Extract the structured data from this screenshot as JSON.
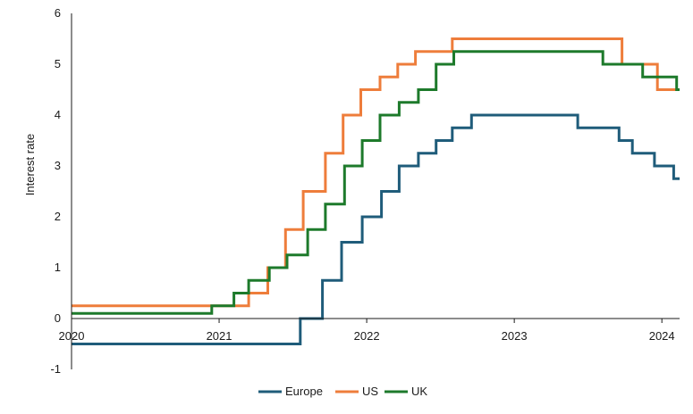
{
  "chart_data": {
    "type": "line",
    "title": "",
    "xlabel": "",
    "ylabel": "Interest rate",
    "xlim": [
      2020.0,
      2024.12
    ],
    "ylim": [
      -1,
      6
    ],
    "x_ticks": [
      {
        "value": 2020,
        "label": "2020"
      },
      {
        "value": 2021,
        "label": "2021"
      },
      {
        "value": 2022,
        "label": "2022"
      },
      {
        "value": 2023,
        "label": "2023"
      },
      {
        "value": 2024,
        "label": "2024"
      }
    ],
    "y_ticks": [
      {
        "value": 6,
        "label": "6"
      },
      {
        "value": 5,
        "label": "5"
      },
      {
        "value": 4,
        "label": "4"
      },
      {
        "value": 3,
        "label": "3"
      },
      {
        "value": 2,
        "label": "2"
      },
      {
        "value": 1,
        "label": "1"
      },
      {
        "value": 0,
        "label": "0"
      },
      {
        "value": -1,
        "label": "-1"
      }
    ],
    "grid": false,
    "legend_position": "bottom",
    "step": true,
    "series": [
      {
        "name": "Europe",
        "color": "#1f5c7a",
        "points": [
          [
            2020.0,
            -0.5
          ],
          [
            2021.55,
            0.0
          ],
          [
            2021.7,
            0.75
          ],
          [
            2021.83,
            1.5
          ],
          [
            2021.97,
            2.0
          ],
          [
            2022.1,
            2.5
          ],
          [
            2022.22,
            3.0
          ],
          [
            2022.35,
            3.25
          ],
          [
            2022.47,
            3.5
          ],
          [
            2022.58,
            3.75
          ],
          [
            2022.71,
            4.0
          ],
          [
            2023.43,
            3.75
          ],
          [
            2023.71,
            3.5
          ],
          [
            2023.8,
            3.25
          ],
          [
            2023.95,
            3.0
          ],
          [
            2024.08,
            2.75
          ],
          [
            2024.12,
            2.75
          ]
        ]
      },
      {
        "name": "US",
        "color": "#ee7d3b",
        "points": [
          [
            2020.0,
            0.25
          ],
          [
            2021.2,
            0.5
          ],
          [
            2021.33,
            1.0
          ],
          [
            2021.45,
            1.75
          ],
          [
            2021.57,
            2.5
          ],
          [
            2021.72,
            3.25
          ],
          [
            2021.84,
            4.0
          ],
          [
            2021.96,
            4.5
          ],
          [
            2022.09,
            4.75
          ],
          [
            2022.21,
            5.0
          ],
          [
            2022.33,
            5.25
          ],
          [
            2022.58,
            5.5
          ],
          [
            2023.73,
            5.0
          ],
          [
            2023.97,
            4.5
          ],
          [
            2024.12,
            4.5
          ]
        ]
      },
      {
        "name": "UK",
        "color": "#1d7a2b",
        "points": [
          [
            2020.0,
            0.1
          ],
          [
            2020.95,
            0.25
          ],
          [
            2021.1,
            0.5
          ],
          [
            2021.2,
            0.75
          ],
          [
            2021.34,
            1.0
          ],
          [
            2021.46,
            1.25
          ],
          [
            2021.6,
            1.75
          ],
          [
            2021.72,
            2.25
          ],
          [
            2021.85,
            3.0
          ],
          [
            2021.97,
            3.5
          ],
          [
            2022.09,
            4.0
          ],
          [
            2022.22,
            4.25
          ],
          [
            2022.35,
            4.5
          ],
          [
            2022.47,
            5.0
          ],
          [
            2022.59,
            5.25
          ],
          [
            2023.6,
            5.0
          ],
          [
            2023.87,
            4.75
          ],
          [
            2024.1,
            4.5
          ],
          [
            2024.12,
            4.5
          ]
        ]
      }
    ]
  }
}
